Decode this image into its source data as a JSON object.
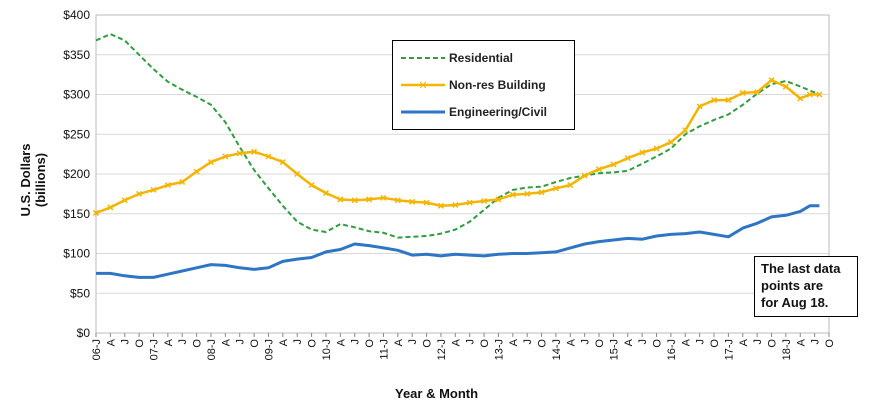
{
  "chart_data": {
    "type": "line",
    "title": "",
    "xlabel": "Year & Month",
    "ylabel": "U.S. Dollars (billions)",
    "ylim": [
      0,
      400
    ],
    "yticks": [
      "$0",
      "$50",
      "$100",
      "$150",
      "$200",
      "$250",
      "$300",
      "$350",
      "$400"
    ],
    "x_start": "2006-01",
    "x_end": "2018-10",
    "xtick_labels": [
      "06-J",
      "A",
      "J",
      "O",
      "07-J",
      "A",
      "J",
      "O",
      "08-J",
      "A",
      "J",
      "O",
      "09-J",
      "A",
      "J",
      "O",
      "10-J",
      "A",
      "J",
      "O",
      "11-J",
      "A",
      "J",
      "O",
      "12-J",
      "A",
      "J",
      "O",
      "13-J",
      "A",
      "J",
      "O",
      "14-J",
      "A",
      "J",
      "O",
      "15-J",
      "A",
      "J",
      "O",
      "16-J",
      "A",
      "J",
      "O",
      "17-J",
      "A",
      "J",
      "O",
      "18-J",
      "A",
      "J",
      "O"
    ],
    "legend_position": "top-center",
    "grid": true,
    "note": [
      "The last data",
      "points are",
      "for Aug 18."
    ],
    "series": [
      {
        "name": "Residential",
        "color": "#2e9e3e",
        "style": "dashed",
        "points": [
          [
            "2006-01",
            368
          ],
          [
            "2006-04",
            376
          ],
          [
            "2006-07",
            368
          ],
          [
            "2006-10",
            350
          ],
          [
            "2007-01",
            332
          ],
          [
            "2007-04",
            316
          ],
          [
            "2007-07",
            306
          ],
          [
            "2007-10",
            297
          ],
          [
            "2008-01",
            287
          ],
          [
            "2008-04",
            265
          ],
          [
            "2008-07",
            234
          ],
          [
            "2008-10",
            205
          ],
          [
            "2009-01",
            182
          ],
          [
            "2009-04",
            160
          ],
          [
            "2009-07",
            140
          ],
          [
            "2009-10",
            130
          ],
          [
            "2010-01",
            127
          ],
          [
            "2010-04",
            137
          ],
          [
            "2010-07",
            133
          ],
          [
            "2010-10",
            128
          ],
          [
            "2011-01",
            126
          ],
          [
            "2011-04",
            120
          ],
          [
            "2011-07",
            121
          ],
          [
            "2011-10",
            122
          ],
          [
            "2012-01",
            125
          ],
          [
            "2012-04",
            130
          ],
          [
            "2012-07",
            140
          ],
          [
            "2012-10",
            155
          ],
          [
            "2013-01",
            170
          ],
          [
            "2013-04",
            180
          ],
          [
            "2013-07",
            183
          ],
          [
            "2013-10",
            184
          ],
          [
            "2014-01",
            190
          ],
          [
            "2014-04",
            195
          ],
          [
            "2014-07",
            198
          ],
          [
            "2014-10",
            201
          ],
          [
            "2015-01",
            202
          ],
          [
            "2015-04",
            204
          ],
          [
            "2015-07",
            213
          ],
          [
            "2015-10",
            222
          ],
          [
            "2016-01",
            232
          ],
          [
            "2016-04",
            250
          ],
          [
            "2016-07",
            260
          ],
          [
            "2016-10",
            268
          ],
          [
            "2017-01",
            275
          ],
          [
            "2017-04",
            287
          ],
          [
            "2017-07",
            301
          ],
          [
            "2017-10",
            313
          ],
          [
            "2018-01",
            317
          ],
          [
            "2018-04",
            310
          ],
          [
            "2018-06",
            305
          ],
          [
            "2018-08",
            300
          ]
        ]
      },
      {
        "name": "Non-res Building",
        "color": "#f5b400",
        "style": "solid-markers",
        "points": [
          [
            "2006-01",
            151
          ],
          [
            "2006-04",
            158
          ],
          [
            "2006-07",
            167
          ],
          [
            "2006-10",
            175
          ],
          [
            "2007-01",
            180
          ],
          [
            "2007-04",
            186
          ],
          [
            "2007-07",
            190
          ],
          [
            "2007-10",
            203
          ],
          [
            "2008-01",
            215
          ],
          [
            "2008-04",
            222
          ],
          [
            "2008-07",
            226
          ],
          [
            "2008-10",
            228
          ],
          [
            "2009-01",
            222
          ],
          [
            "2009-04",
            215
          ],
          [
            "2009-07",
            200
          ],
          [
            "2009-10",
            186
          ],
          [
            "2010-01",
            176
          ],
          [
            "2010-04",
            168
          ],
          [
            "2010-07",
            167
          ],
          [
            "2010-10",
            168
          ],
          [
            "2011-01",
            170
          ],
          [
            "2011-04",
            167
          ],
          [
            "2011-07",
            165
          ],
          [
            "2011-10",
            164
          ],
          [
            "2012-01",
            160
          ],
          [
            "2012-04",
            161
          ],
          [
            "2012-07",
            164
          ],
          [
            "2012-10",
            166
          ],
          [
            "2013-01",
            168
          ],
          [
            "2013-04",
            174
          ],
          [
            "2013-07",
            175
          ],
          [
            "2013-10",
            177
          ],
          [
            "2014-01",
            182
          ],
          [
            "2014-04",
            186
          ],
          [
            "2014-07",
            198
          ],
          [
            "2014-10",
            206
          ],
          [
            "2015-01",
            212
          ],
          [
            "2015-04",
            220
          ],
          [
            "2015-07",
            227
          ],
          [
            "2015-10",
            232
          ],
          [
            "2016-01",
            240
          ],
          [
            "2016-04",
            255
          ],
          [
            "2016-07",
            285
          ],
          [
            "2016-10",
            293
          ],
          [
            "2017-01",
            293
          ],
          [
            "2017-04",
            302
          ],
          [
            "2017-07",
            303
          ],
          [
            "2017-10",
            318
          ],
          [
            "2018-01",
            310
          ],
          [
            "2018-04",
            295
          ],
          [
            "2018-06",
            300
          ],
          [
            "2018-08",
            300
          ]
        ]
      },
      {
        "name": "Engineering/Civil",
        "color": "#2f75c5",
        "style": "solid",
        "points": [
          [
            "2006-01",
            75
          ],
          [
            "2006-04",
            75
          ],
          [
            "2006-07",
            72
          ],
          [
            "2006-10",
            70
          ],
          [
            "2007-01",
            70
          ],
          [
            "2007-04",
            74
          ],
          [
            "2007-07",
            78
          ],
          [
            "2007-10",
            82
          ],
          [
            "2008-01",
            86
          ],
          [
            "2008-04",
            85
          ],
          [
            "2008-07",
            82
          ],
          [
            "2008-10",
            80
          ],
          [
            "2009-01",
            82
          ],
          [
            "2009-04",
            90
          ],
          [
            "2009-07",
            93
          ],
          [
            "2009-10",
            95
          ],
          [
            "2010-01",
            102
          ],
          [
            "2010-04",
            105
          ],
          [
            "2010-07",
            112
          ],
          [
            "2010-10",
            110
          ],
          [
            "2011-01",
            107
          ],
          [
            "2011-04",
            104
          ],
          [
            "2011-07",
            98
          ],
          [
            "2011-10",
            99
          ],
          [
            "2012-01",
            97
          ],
          [
            "2012-04",
            99
          ],
          [
            "2012-07",
            98
          ],
          [
            "2012-10",
            97
          ],
          [
            "2013-01",
            99
          ],
          [
            "2013-04",
            100
          ],
          [
            "2013-07",
            100
          ],
          [
            "2013-10",
            101
          ],
          [
            "2014-01",
            102
          ],
          [
            "2014-04",
            107
          ],
          [
            "2014-07",
            112
          ],
          [
            "2014-10",
            115
          ],
          [
            "2015-01",
            117
          ],
          [
            "2015-04",
            119
          ],
          [
            "2015-07",
            118
          ],
          [
            "2015-10",
            122
          ],
          [
            "2016-01",
            124
          ],
          [
            "2016-04",
            125
          ],
          [
            "2016-07",
            127
          ],
          [
            "2016-10",
            124
          ],
          [
            "2017-01",
            121
          ],
          [
            "2017-04",
            132
          ],
          [
            "2017-07",
            138
          ],
          [
            "2017-10",
            146
          ],
          [
            "2018-01",
            148
          ],
          [
            "2018-04",
            153
          ],
          [
            "2018-06",
            160
          ],
          [
            "2018-08",
            160
          ]
        ]
      }
    ]
  }
}
